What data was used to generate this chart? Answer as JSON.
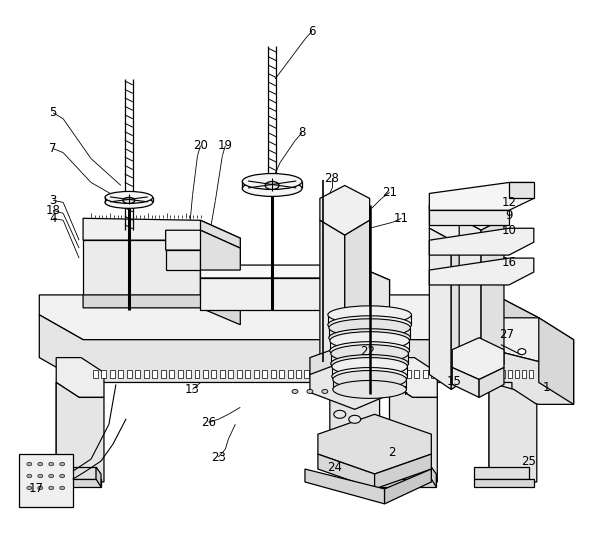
{
  "bg": "#ffffff",
  "lc": "#000000",
  "figw": 5.95,
  "figh": 5.56,
  "dpi": 100
}
